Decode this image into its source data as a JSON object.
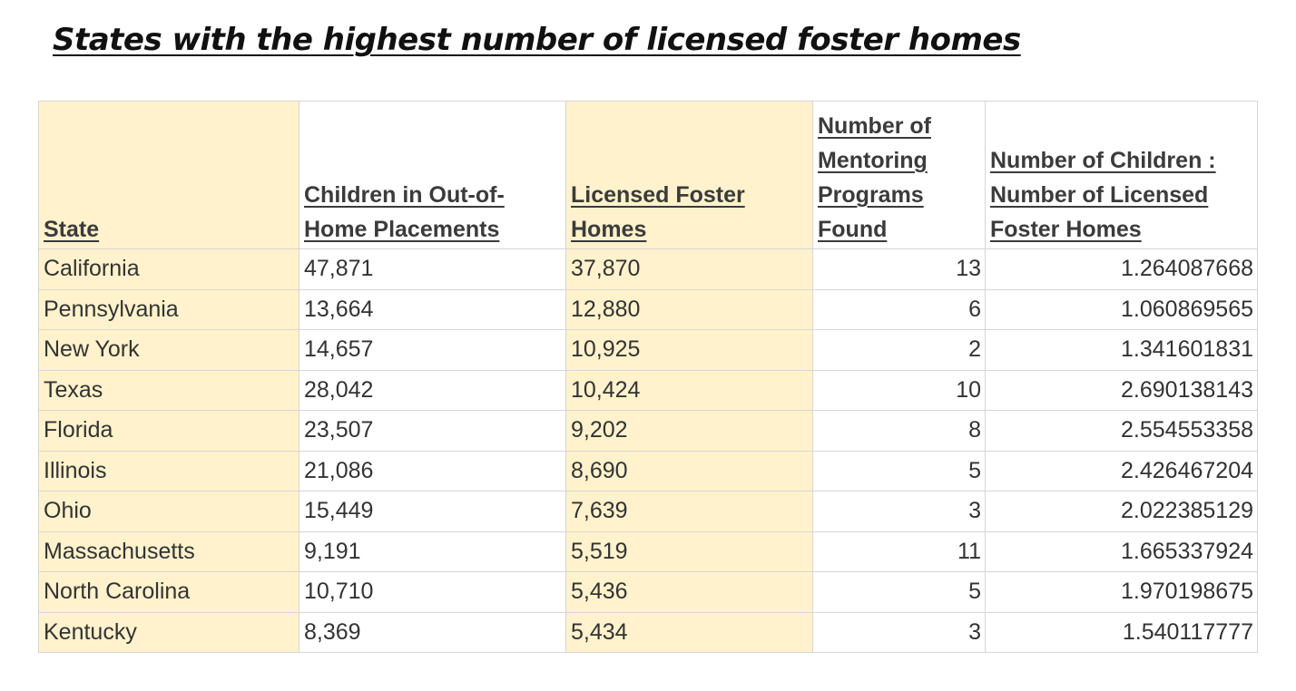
{
  "title": "States with the highest number of licensed foster homes",
  "table": {
    "headers": [
      "State",
      "Children in Out-of-Home Placements",
      "Licensed Foster Homes",
      "Number of Mentoring Programs Found",
      "Number of Children : Number of Licensed Foster Homes"
    ],
    "rows": [
      [
        "California",
        "47,871",
        "37,870",
        "13",
        "1.264087668"
      ],
      [
        "Pennsylvania",
        "13,664",
        "12,880",
        "6",
        "1.060869565"
      ],
      [
        "New York",
        "14,657",
        "10,925",
        "2",
        "1.341601831"
      ],
      [
        "Texas",
        "28,042",
        "10,424",
        "10",
        "2.690138143"
      ],
      [
        "Florida",
        "23,507",
        "9,202",
        "8",
        "2.554553358"
      ],
      [
        "Illinois",
        "21,086",
        "8,690",
        "5",
        "2.426467204"
      ],
      [
        "Ohio",
        "15,449",
        "7,639",
        "3",
        "2.022385129"
      ],
      [
        "Massachusetts",
        "9,191",
        "5,519",
        "11",
        "1.665337924"
      ],
      [
        "North Carolina",
        "10,710",
        "5,436",
        "5",
        "1.970198675"
      ],
      [
        "Kentucky",
        "8,369",
        "5,434",
        "3",
        "1.540117777"
      ]
    ]
  },
  "colors": {
    "highlight_column": "#fff2cc",
    "grid": "#d6d6d6"
  }
}
